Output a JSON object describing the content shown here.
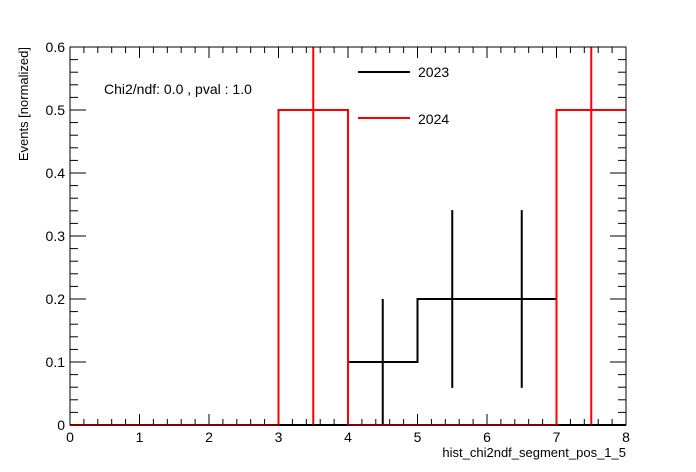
{
  "chart_data": {
    "type": "histogram",
    "title": "",
    "xlabel": "hist_chi2ndf_segment_pos_1_5",
    "ylabel": "Events [normalized]",
    "xlim": [
      0,
      8
    ],
    "ylim": [
      0,
      0.6
    ],
    "x_ticks": [
      "0",
      "1",
      "2",
      "3",
      "4",
      "5",
      "6",
      "7",
      "8"
    ],
    "y_ticks": [
      "0",
      "0.1",
      "0.2",
      "0.3",
      "0.4",
      "0.5",
      "0.6"
    ],
    "grid": false,
    "legend_position": "top-center",
    "annotation": "Chi2/ndf: 0.0 , pval : 1.0",
    "bin_edges": [
      0,
      1,
      2,
      3,
      4,
      5,
      6,
      7,
      8
    ],
    "series": [
      {
        "name": "2023",
        "color": "#000000",
        "values": [
          0,
          0,
          0,
          0,
          0.1,
          0.2,
          0.2,
          0
        ],
        "errors": [
          0,
          0,
          0,
          0,
          0.1,
          0.141,
          0.141,
          0
        ]
      },
      {
        "name": "2024",
        "color": "#ff0000",
        "values": [
          0,
          0,
          0,
          0.5,
          0,
          0,
          0,
          0.5
        ],
        "errors": [
          0,
          0,
          0,
          0.5,
          0,
          0,
          0,
          0.5
        ]
      }
    ]
  }
}
